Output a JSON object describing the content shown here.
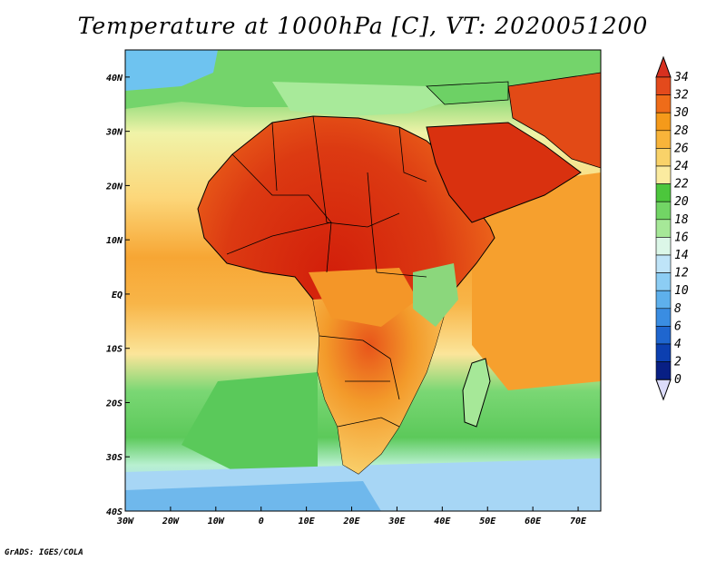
{
  "title": "Temperature at 1000hPa [C], VT: 2020051200",
  "credit": "GrADS: IGES/COLA",
  "map": {
    "lon_range": [
      -30,
      75
    ],
    "lat_range": [
      -40,
      45
    ],
    "lat_ticks": [
      "40N",
      "30N",
      "20N",
      "10N",
      "EQ",
      "10S",
      "20S",
      "30S",
      "40S"
    ],
    "lat_values": [
      40,
      30,
      20,
      10,
      0,
      -10,
      -20,
      -30,
      -40
    ],
    "lon_ticks": [
      "30W",
      "20W",
      "10W",
      "0",
      "10E",
      "20E",
      "30E",
      "40E",
      "50E",
      "60E",
      "70E"
    ],
    "lon_values": [
      -30,
      -20,
      -10,
      0,
      10,
      20,
      30,
      40,
      50,
      60,
      70
    ]
  },
  "colorbar": {
    "labels": [
      "34",
      "32",
      "30",
      "28",
      "26",
      "24",
      "22",
      "20",
      "18",
      "16",
      "14",
      "12",
      "10",
      "8",
      "6",
      "4",
      "2",
      "0"
    ],
    "colors": [
      "#d7301f",
      "#e34a1c",
      "#ef6c19",
      "#f59a1a",
      "#f8b43a",
      "#f9d269",
      "#fbeba0",
      "#4cc63c",
      "#72d565",
      "#a6e898",
      "#dcf7e8",
      "#bfe4f8",
      "#8ccdf4",
      "#5eb0ec",
      "#3a8de2",
      "#1f66cf",
      "#0c3fb0",
      "#081f84",
      "#dcdcfa"
    ]
  },
  "colors": {
    "ocean_cold": "#a7d6f5",
    "ocean_cool": "#7fe07a",
    "ocean_warm": "#fde7a0",
    "ocean_hot": "#f7a12a",
    "land_hot": "#d8290c",
    "land_warm": "#ef6a1b",
    "land_mild": "#f9b23c",
    "coast": "#000000"
  }
}
